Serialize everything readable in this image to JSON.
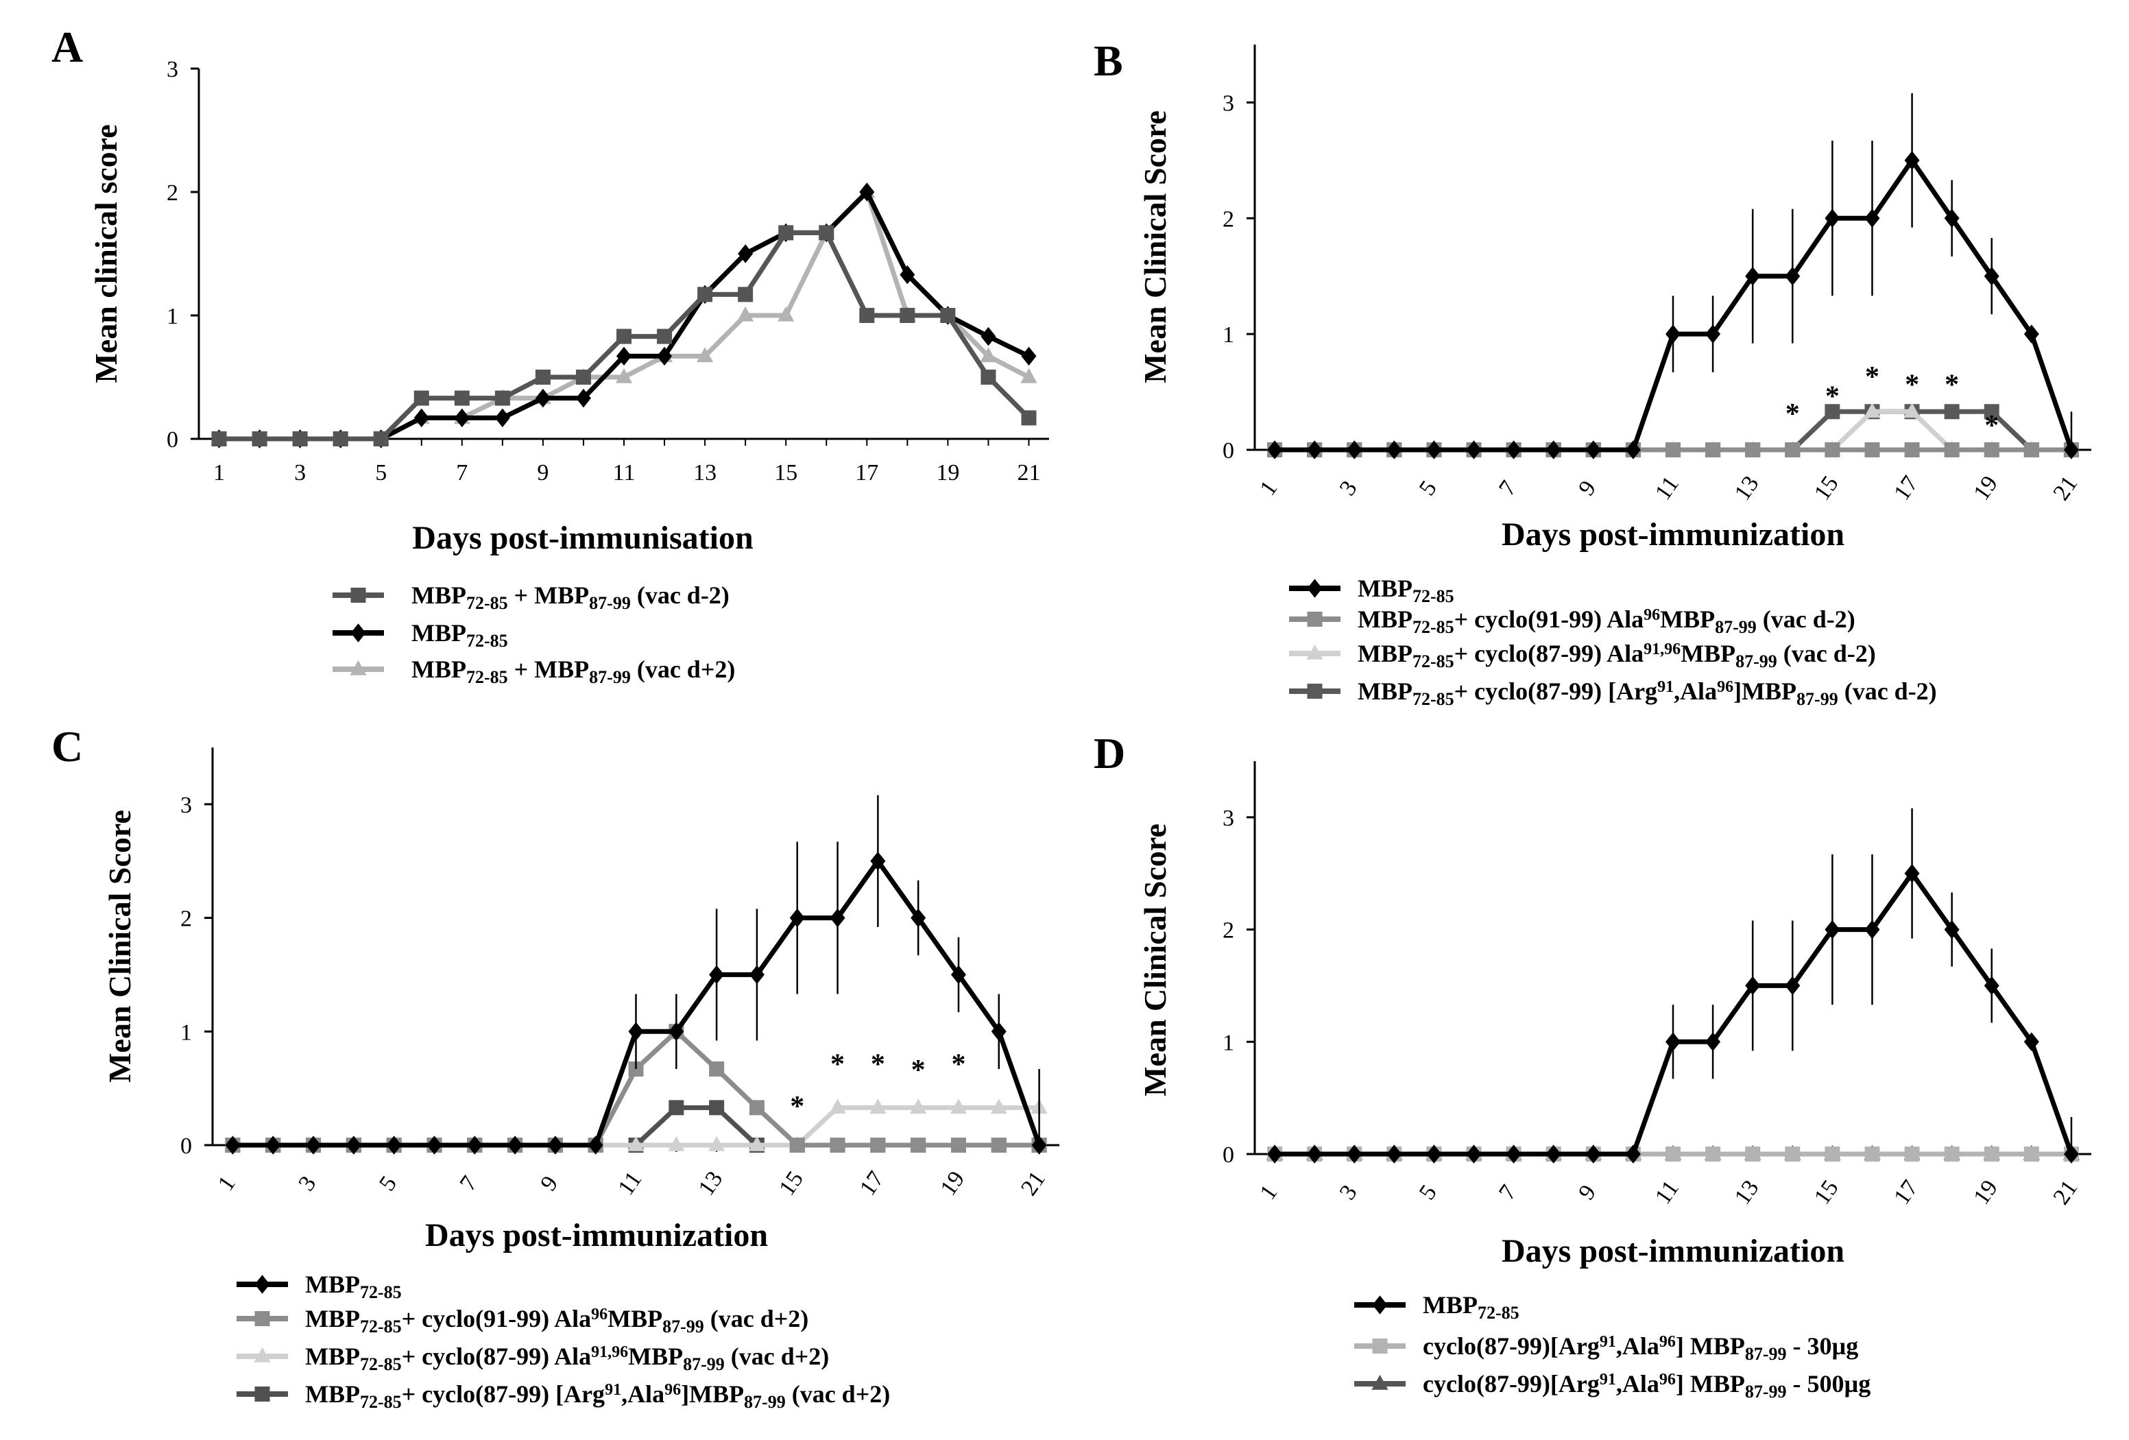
{
  "chart_data": [
    {
      "panel": "A",
      "type": "line",
      "xlabel": "Days post-immunisation",
      "ylabel": "Mean clinical score",
      "ylim": [
        0,
        3
      ],
      "yticks": [
        "0",
        "1",
        "2",
        "3"
      ],
      "x": [
        1,
        2,
        3,
        4,
        5,
        6,
        7,
        8,
        9,
        10,
        11,
        12,
        13,
        14,
        15,
        16,
        17,
        18,
        19,
        20,
        21
      ],
      "xticks": [
        "1",
        "3",
        "5",
        "7",
        "9",
        "11",
        "13",
        "15",
        "17",
        "19",
        "21"
      ],
      "xtick_rotated": false,
      "legend": "bottom",
      "series": [
        {
          "name": "MBP72-85 + MBP87-99 (vac d-2)",
          "legend_parts": [
            {
              "t": "MBP"
            },
            {
              "t": "72-85",
              "sub": true
            },
            {
              "t": " + MBP"
            },
            {
              "t": "87-99",
              "sub": true
            },
            {
              "t": " (vac d-2)"
            }
          ],
          "color": "#555555",
          "marker": "square",
          "values": [
            0,
            0,
            0,
            0,
            0,
            0.33,
            0.33,
            0.33,
            0.5,
            0.5,
            0.83,
            0.83,
            1.17,
            1.17,
            1.67,
            1.67,
            1.0,
            1.0,
            1.0,
            0.5,
            0.17
          ]
        },
        {
          "name": "MBP72-85",
          "legend_parts": [
            {
              "t": "MBP"
            },
            {
              "t": "72-85",
              "sub": true
            }
          ],
          "color": "#000000",
          "marker": "diamond",
          "values": [
            0,
            0,
            0,
            0,
            0,
            0.17,
            0.17,
            0.17,
            0.33,
            0.33,
            0.67,
            0.67,
            1.17,
            1.5,
            1.67,
            1.67,
            2.0,
            1.33,
            1.0,
            0.83,
            0.67
          ]
        },
        {
          "name": "MBP72-85 + MBP87-99 (vac d+2)",
          "legend_parts": [
            {
              "t": "MBP"
            },
            {
              "t": "72-85",
              "sub": true
            },
            {
              "t": " + MBP"
            },
            {
              "t": "87-99",
              "sub": true
            },
            {
              "t": " (vac d+2)"
            }
          ],
          "color": "#b3b3b3",
          "marker": "triangle",
          "values": [
            0,
            0,
            0,
            0,
            0,
            0.17,
            0.17,
            0.33,
            0.33,
            0.5,
            0.5,
            0.67,
            0.67,
            1.0,
            1.0,
            1.67,
            2.0,
            1.0,
            1.0,
            0.67,
            0.5
          ]
        }
      ]
    },
    {
      "panel": "B",
      "type": "line",
      "xlabel": "Days post-immunization",
      "ylabel": "Mean Clinical Score",
      "ylim": [
        0,
        3.5
      ],
      "yticks": [
        "0",
        "1",
        "2",
        "3"
      ],
      "x": [
        1,
        2,
        3,
        4,
        5,
        6,
        7,
        8,
        9,
        10,
        11,
        12,
        13,
        14,
        15,
        16,
        17,
        18,
        19,
        20,
        21
      ],
      "xticks": [
        "1",
        "3",
        "5",
        "7",
        "9",
        "11",
        "13",
        "15",
        "17",
        "19",
        "21"
      ],
      "xtick_rotated": true,
      "legend": "bottom",
      "annotations": [
        {
          "x": 14,
          "y": 0.35,
          "text": "*"
        },
        {
          "x": 15,
          "y": 0.5,
          "text": "*"
        },
        {
          "x": 16,
          "y": 0.67,
          "text": "*"
        },
        {
          "x": 17,
          "y": 0.6,
          "text": "*"
        },
        {
          "x": 18,
          "y": 0.6,
          "text": "*"
        },
        {
          "x": 19,
          "y": 0.25,
          "text": "*"
        }
      ],
      "series": [
        {
          "name": "MBP72-85",
          "legend_parts": [
            {
              "t": "MBP"
            },
            {
              "t": "72-85",
              "sub": true
            }
          ],
          "color": "#000000",
          "marker": "diamond",
          "values": [
            0,
            0,
            0,
            0,
            0,
            0,
            0,
            0,
            0,
            0,
            1.0,
            1.0,
            1.5,
            1.5,
            2.0,
            2.0,
            2.5,
            2.0,
            1.5,
            1.0,
            0
          ],
          "errors": [
            0,
            0,
            0,
            0,
            0,
            0,
            0,
            0,
            0,
            0,
            0.33,
            0.33,
            0.58,
            0.58,
            0.67,
            0.67,
            0.58,
            0.33,
            0.33,
            0,
            0.33
          ]
        },
        {
          "name": "MBP72-85+ cyclo(91-99) Ala96MBP87-99 (vac d-2)",
          "legend_parts": [
            {
              "t": "MBP"
            },
            {
              "t": "72-85",
              "sub": true
            },
            {
              "t": "+ cyclo(91-99) Ala"
            },
            {
              "t": "96",
              "sup": true
            },
            {
              "t": "MBP"
            },
            {
              "t": "87-99",
              "sub": true
            },
            {
              "t": " (vac d-2)"
            }
          ],
          "color": "#8c8c8c",
          "marker": "square",
          "values": [
            0,
            0,
            0,
            0,
            0,
            0,
            0,
            0,
            0,
            0,
            0,
            0,
            0,
            0,
            0,
            0,
            0,
            0,
            0,
            0,
            0
          ]
        },
        {
          "name": "MBP72-85+ cyclo(87-99) Ala91,96MBP87-99 (vac d-2)",
          "legend_parts": [
            {
              "t": "MBP"
            },
            {
              "t": "72-85",
              "sub": true
            },
            {
              "t": "+ cyclo(87-99) Ala"
            },
            {
              "t": "91,96",
              "sup": true
            },
            {
              "t": "MBP"
            },
            {
              "t": "87-99",
              "sub": true
            },
            {
              "t": " (vac d-2)"
            }
          ],
          "color": "#d0d0d0",
          "marker": "triangle",
          "values": [
            0,
            0,
            0,
            0,
            0,
            0,
            0,
            0,
            0,
            0,
            0,
            0,
            0,
            0,
            0,
            0.33,
            0.33,
            0,
            0,
            0,
            0
          ]
        },
        {
          "name": "MBP72-85+ cyclo(87-99) [Arg91,Ala96]MBP87-99 (vac d-2)",
          "legend_parts": [
            {
              "t": "MBP"
            },
            {
              "t": "72-85",
              "sub": true
            },
            {
              "t": "+ cyclo(87-99) [Arg"
            },
            {
              "t": "91",
              "sup": true
            },
            {
              "t": ",Ala"
            },
            {
              "t": "96",
              "sup": true
            },
            {
              "t": "]MBP"
            },
            {
              "t": "87-99",
              "sub": true
            },
            {
              "t": " (vac d-2)"
            }
          ],
          "color": "#595959",
          "marker": "square",
          "values": [
            0,
            0,
            0,
            0,
            0,
            0,
            0,
            0,
            0,
            0,
            0,
            0,
            0,
            0,
            0.33,
            0.33,
            0.33,
            0.33,
            0.33,
            0,
            0
          ]
        }
      ]
    },
    {
      "panel": "C",
      "type": "line",
      "xlabel": "Days post-immunization",
      "ylabel": "Mean Clinical Score",
      "ylim": [
        0,
        3.5
      ],
      "yticks": [
        "0",
        "1",
        "2",
        "3"
      ],
      "x": [
        1,
        2,
        3,
        4,
        5,
        6,
        7,
        8,
        9,
        10,
        11,
        12,
        13,
        14,
        15,
        16,
        17,
        18,
        19,
        20,
        21
      ],
      "xticks": [
        "1",
        "3",
        "5",
        "7",
        "9",
        "11",
        "13",
        "15",
        "17",
        "19",
        "21"
      ],
      "xtick_rotated": true,
      "legend": "bottom",
      "annotations": [
        {
          "x": 15,
          "y": 0.38,
          "text": "*"
        },
        {
          "x": 16,
          "y": 0.75,
          "text": "*"
        },
        {
          "x": 17,
          "y": 0.75,
          "text": "*"
        },
        {
          "x": 18,
          "y": 0.7,
          "text": "*"
        },
        {
          "x": 19,
          "y": 0.75,
          "text": "*"
        }
      ],
      "series": [
        {
          "name": "MBP72-85",
          "legend_parts": [
            {
              "t": "MBP"
            },
            {
              "t": "72-85",
              "sub": true
            }
          ],
          "color": "#000000",
          "marker": "diamond",
          "values": [
            0,
            0,
            0,
            0,
            0,
            0,
            0,
            0,
            0,
            0,
            1.0,
            1.0,
            1.5,
            1.5,
            2.0,
            2.0,
            2.5,
            2.0,
            1.5,
            1.0,
            0
          ],
          "errors": [
            0,
            0,
            0,
            0,
            0,
            0,
            0,
            0,
            0,
            0,
            0.33,
            0.33,
            0.58,
            0.58,
            0.67,
            0.67,
            0.58,
            0.33,
            0.33,
            0.33,
            0.67
          ]
        },
        {
          "name": "MBP72-85+ cyclo(91-99) Ala96MBP87-99 (vac d+2)",
          "legend_parts": [
            {
              "t": "MBP"
            },
            {
              "t": "72-85",
              "sub": true
            },
            {
              "t": "+ cyclo(91-99) Ala"
            },
            {
              "t": "96",
              "sup": true
            },
            {
              "t": "MBP"
            },
            {
              "t": "87-99",
              "sub": true
            },
            {
              "t": " (vac d+2)"
            }
          ],
          "color": "#8c8c8c",
          "marker": "square",
          "values": [
            0,
            0,
            0,
            0,
            0,
            0,
            0,
            0,
            0,
            0,
            0.67,
            1.0,
            0.67,
            0.33,
            0,
            0,
            0,
            0,
            0,
            0,
            0
          ]
        },
        {
          "name": "MBP72-85+ cyclo(87-99) Ala91,96MBP87-99 (vac d+2)",
          "legend_parts": [
            {
              "t": "MBP"
            },
            {
              "t": "72-85",
              "sub": true
            },
            {
              "t": "+ cyclo(87-99) Ala"
            },
            {
              "t": "91,96",
              "sup": true
            },
            {
              "t": "MBP"
            },
            {
              "t": "87-99",
              "sub": true
            },
            {
              "t": " (vac d+2)"
            }
          ],
          "color": "#d0d0d0",
          "marker": "triangle",
          "values": [
            0,
            0,
            0,
            0,
            0,
            0,
            0,
            0,
            0,
            0,
            0,
            0,
            0,
            0,
            0,
            0.33,
            0.33,
            0.33,
            0.33,
            0.33,
            0.33
          ]
        },
        {
          "name": "MBP72-85+ cyclo(87-99) [Arg91,Ala96]MBP87-99 (vac d+2)",
          "legend_parts": [
            {
              "t": "MBP"
            },
            {
              "t": "72-85",
              "sub": true
            },
            {
              "t": "+ cyclo(87-99) [Arg"
            },
            {
              "t": "91",
              "sup": true
            },
            {
              "t": ",Ala"
            },
            {
              "t": "96",
              "sup": true
            },
            {
              "t": "]MBP"
            },
            {
              "t": "87-99",
              "sub": true
            },
            {
              "t": " (vac d+2)"
            }
          ],
          "color": "#505050",
          "marker": "square",
          "values": [
            0,
            0,
            0,
            0,
            0,
            0,
            0,
            0,
            0,
            0,
            0,
            0.33,
            0.33,
            0,
            0,
            0,
            0,
            0,
            0,
            0,
            0
          ]
        }
      ]
    },
    {
      "panel": "D",
      "type": "line",
      "xlabel": "Days post-immunization",
      "ylabel": "Mean Clinical Score",
      "ylim": [
        0,
        3.5
      ],
      "yticks": [
        "0",
        "1",
        "2",
        "3"
      ],
      "x": [
        1,
        2,
        3,
        4,
        5,
        6,
        7,
        8,
        9,
        10,
        11,
        12,
        13,
        14,
        15,
        16,
        17,
        18,
        19,
        20,
        21
      ],
      "xticks": [
        "1",
        "3",
        "5",
        "7",
        "9",
        "11",
        "13",
        "15",
        "17",
        "19",
        "21"
      ],
      "xtick_rotated": true,
      "legend": "bottom",
      "series": [
        {
          "name": "MBP72-85",
          "legend_parts": [
            {
              "t": "MBP"
            },
            {
              "t": "72-85",
              "sub": true
            }
          ],
          "color": "#000000",
          "marker": "diamond",
          "values": [
            0,
            0,
            0,
            0,
            0,
            0,
            0,
            0,
            0,
            0,
            1.0,
            1.0,
            1.5,
            1.5,
            2.0,
            2.0,
            2.5,
            2.0,
            1.5,
            1.0,
            0
          ],
          "errors": [
            0,
            0,
            0,
            0,
            0,
            0,
            0,
            0,
            0,
            0,
            0.33,
            0.33,
            0.58,
            0.58,
            0.67,
            0.67,
            0.58,
            0.33,
            0.33,
            0,
            0.33
          ]
        },
        {
          "name": "cyclo(87-99)[Arg91,Ala96] MBP87-99 - 30µg",
          "legend_parts": [
            {
              "t": "cyclo(87-99)[Arg"
            },
            {
              "t": "91",
              "sup": true
            },
            {
              "t": ",Ala"
            },
            {
              "t": "96",
              "sup": true
            },
            {
              "t": "] MBP"
            },
            {
              "t": "87-99",
              "sub": true
            },
            {
              "t": " - 30µg"
            }
          ],
          "color": "#b3b3b3",
          "marker": "square",
          "values": [
            0,
            0,
            0,
            0,
            0,
            0,
            0,
            0,
            0,
            0,
            0,
            0,
            0,
            0,
            0,
            0,
            0,
            0,
            0,
            0,
            0
          ]
        },
        {
          "name": "cyclo(87-99)[Arg91,Ala96] MBP87-99 - 500µg",
          "legend_parts": [
            {
              "t": "cyclo(87-99)[Arg"
            },
            {
              "t": "91",
              "sup": true
            },
            {
              "t": ",Ala"
            },
            {
              "t": "96",
              "sup": true
            },
            {
              "t": "] MBP"
            },
            {
              "t": "87-99",
              "sub": true
            },
            {
              "t": " - 500µg"
            }
          ],
          "color": "#555555",
          "marker": "triangle",
          "values": [
            0,
            0,
            0,
            0,
            0,
            0,
            0,
            0,
            0,
            0,
            0,
            0,
            0,
            0,
            0,
            0,
            0,
            0,
            0,
            0,
            0
          ]
        }
      ]
    }
  ]
}
